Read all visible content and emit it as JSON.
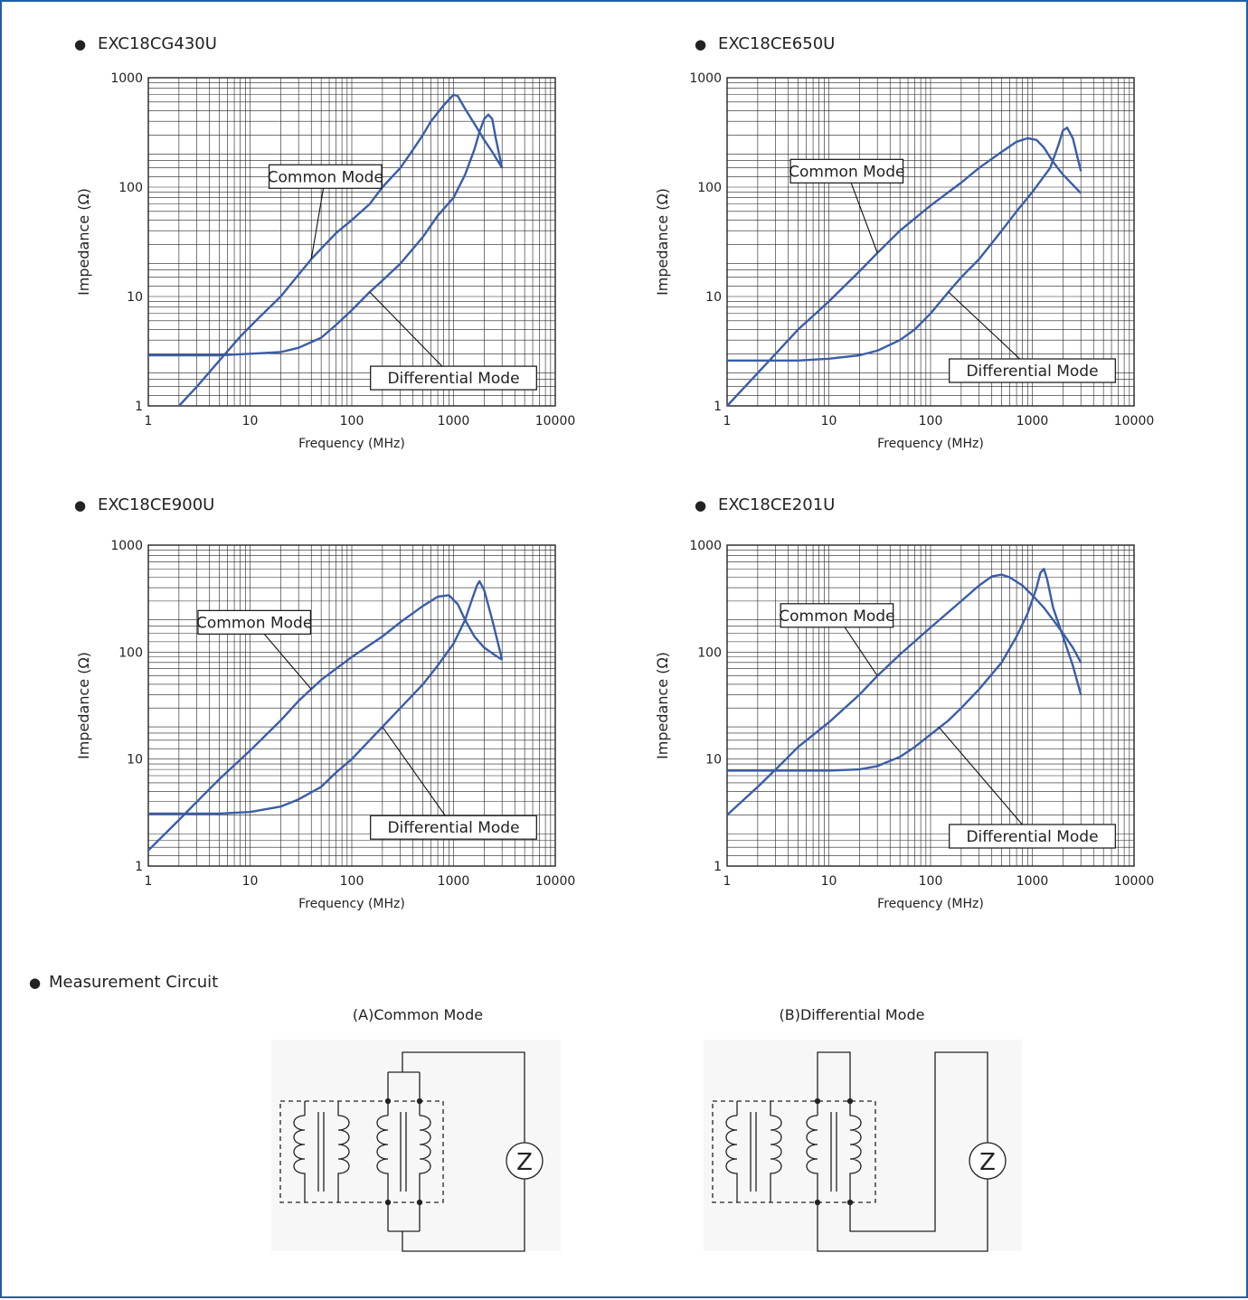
{
  "colors": {
    "frame": "#1f5fa8",
    "curve": "#3a5da8",
    "grid": "#222222",
    "text": "#222222"
  },
  "bullet": "●",
  "chart_data": [
    {
      "type": "line",
      "title": "EXC18CG430U",
      "xlabel": "Frequency (MHz)",
      "ylabel": "Impedance (Ω)",
      "xscale": "log",
      "yscale": "log",
      "xlim": [
        1,
        10000
      ],
      "ylim": [
        1,
        1000
      ],
      "xticks": [
        "1",
        "10",
        "100",
        "1000",
        "10000"
      ],
      "yticks": [
        "1",
        "10",
        "100",
        "1000"
      ],
      "grid": true,
      "series": [
        {
          "name": "Common Mode",
          "x": [
            2,
            3,
            5,
            8,
            12,
            20,
            40,
            70,
            100,
            150,
            200,
            300,
            400,
            500,
            600,
            800,
            1000,
            1100,
            1300,
            1600,
            2000,
            2400,
            3000
          ],
          "y": [
            1,
            1.5,
            2.6,
            4.3,
            6.3,
            10,
            22,
            38,
            50,
            70,
            100,
            150,
            220,
            300,
            400,
            560,
            700,
            680,
            520,
            380,
            270,
            210,
            150
          ]
        },
        {
          "name": "Differential Mode",
          "x": [
            1,
            5,
            10,
            20,
            30,
            50,
            70,
            100,
            150,
            200,
            300,
            500,
            700,
            1000,
            1300,
            1600,
            1800,
            2000,
            2200,
            2400,
            2600,
            3000
          ],
          "y": [
            2.9,
            2.9,
            3,
            3.1,
            3.4,
            4.2,
            5.5,
            7.5,
            11,
            14,
            20,
            35,
            55,
            80,
            130,
            220,
            320,
            420,
            460,
            420,
            280,
            150
          ]
        }
      ],
      "annotations": [
        {
          "text": "Common Mode",
          "box_x": 55,
          "box_y": 125,
          "point_x": 40,
          "point_y": 22
        },
        {
          "text": "Differential Mode",
          "box_x": 1000,
          "box_y": 1.8,
          "point_x": 150,
          "point_y": 11
        }
      ]
    },
    {
      "type": "line",
      "title": "EXC18CE650U",
      "xlabel": "Frequency (MHz)",
      "ylabel": "Impedance (Ω)",
      "xscale": "log",
      "yscale": "log",
      "xlim": [
        1,
        10000
      ],
      "ylim": [
        1,
        1000
      ],
      "xticks": [
        "1",
        "10",
        "100",
        "1000",
        "10000"
      ],
      "yticks": [
        "1",
        "10",
        "100",
        "1000"
      ],
      "grid": true,
      "series": [
        {
          "name": "Common Mode",
          "x": [
            1,
            2,
            3,
            5,
            10,
            20,
            30,
            50,
            100,
            200,
            300,
            500,
            700,
            900,
            1100,
            1300,
            1600,
            2000,
            2500,
            3000
          ],
          "y": [
            1,
            2,
            3,
            5,
            9,
            17,
            25,
            40,
            68,
            110,
            150,
            210,
            260,
            280,
            270,
            230,
            170,
            130,
            105,
            88
          ]
        },
        {
          "name": "Differential Mode",
          "x": [
            1,
            5,
            10,
            20,
            30,
            50,
            70,
            100,
            150,
            200,
            300,
            500,
            700,
            1000,
            1500,
            1800,
            2000,
            2200,
            2500,
            3000
          ],
          "y": [
            2.6,
            2.6,
            2.7,
            2.9,
            3.2,
            4,
            5,
            7,
            11,
            15,
            22,
            40,
            60,
            90,
            150,
            240,
            330,
            350,
            280,
            140
          ]
        }
      ],
      "annotations": [
        {
          "text": "Common Mode",
          "box_x": 15,
          "box_y": 140,
          "point_x": 30,
          "point_y": 25
        },
        {
          "text": "Differential Mode",
          "box_x": 1000,
          "box_y": 2.1,
          "point_x": 150,
          "point_y": 11
        }
      ]
    },
    {
      "type": "line",
      "title": "EXC18CE900U",
      "xlabel": "Frequency (MHz)",
      "ylabel": "Impedance (Ω)",
      "xscale": "log",
      "yscale": "log",
      "xlim": [
        1,
        10000
      ],
      "ylim": [
        1,
        1000
      ],
      "xticks": [
        "1",
        "10",
        "100",
        "1000",
        "10000"
      ],
      "yticks": [
        "1",
        "10",
        "100",
        "1000"
      ],
      "grid": true,
      "series": [
        {
          "name": "Common Mode",
          "x": [
            1,
            2,
            3,
            5,
            10,
            20,
            30,
            50,
            100,
            200,
            300,
            500,
            700,
            900,
            1100,
            1300,
            1600,
            2000,
            2500,
            3000
          ],
          "y": [
            1.4,
            2.7,
            4,
            6.5,
            12,
            23,
            35,
            55,
            90,
            140,
            190,
            270,
            330,
            340,
            280,
            200,
            140,
            110,
            95,
            85
          ]
        },
        {
          "name": "Differential Mode",
          "x": [
            1,
            5,
            10,
            20,
            30,
            50,
            70,
            100,
            150,
            200,
            300,
            500,
            700,
            1000,
            1300,
            1500,
            1700,
            1800,
            2000,
            2400,
            3000
          ],
          "y": [
            3.1,
            3.1,
            3.2,
            3.6,
            4.2,
            5.5,
            7.5,
            10,
            15,
            20,
            30,
            50,
            75,
            120,
            200,
            300,
            420,
            460,
            380,
            200,
            85
          ]
        }
      ],
      "annotations": [
        {
          "text": "Common Mode",
          "box_x": 11,
          "box_y": 190,
          "point_x": 40,
          "point_y": 45
        },
        {
          "text": "Differential Mode",
          "box_x": 1000,
          "box_y": 2.3,
          "point_x": 200,
          "point_y": 20
        }
      ]
    },
    {
      "type": "line",
      "title": "EXC18CE201U",
      "xlabel": "Frequency (MHz)",
      "ylabel": "Impedance (Ω)",
      "xscale": "log",
      "yscale": "log",
      "xlim": [
        1,
        10000
      ],
      "ylim": [
        1,
        1000
      ],
      "xticks": [
        "1",
        "10",
        "100",
        "1000",
        "10000"
      ],
      "yticks": [
        "1",
        "10",
        "100",
        "1000"
      ],
      "grid": true,
      "series": [
        {
          "name": "Common Mode",
          "x": [
            1,
            2,
            3,
            5,
            10,
            20,
            30,
            50,
            100,
            200,
            300,
            400,
            500,
            600,
            800,
            1000,
            1300,
            1600,
            2000,
            2500,
            3000
          ],
          "y": [
            3,
            5.5,
            8,
            13,
            22,
            40,
            60,
            95,
            170,
            300,
            420,
            510,
            530,
            500,
            420,
            340,
            260,
            200,
            150,
            110,
            80
          ]
        },
        {
          "name": "Differential Mode",
          "x": [
            1,
            5,
            10,
            20,
            30,
            50,
            70,
            100,
            150,
            200,
            300,
            500,
            700,
            900,
            1100,
            1200,
            1300,
            1400,
            1600,
            2000,
            2500,
            3000
          ],
          "y": [
            7.8,
            7.8,
            7.8,
            8,
            8.6,
            10.5,
            13,
            17,
            23,
            30,
            45,
            80,
            140,
            230,
            400,
            550,
            600,
            480,
            260,
            140,
            75,
            40
          ]
        }
      ],
      "annotations": [
        {
          "text": "Common Mode",
          "box_x": 12,
          "box_y": 220,
          "point_x": 30,
          "point_y": 60
        },
        {
          "text": "Differential Mode",
          "box_x": 1000,
          "box_y": 1.9,
          "point_x": 120,
          "point_y": 20
        }
      ]
    }
  ],
  "measurement": {
    "title": "Measurement Circuit",
    "common_label": "(A)Common Mode",
    "differential_label": "(B)Differential Mode",
    "z_symbol": "Z"
  }
}
